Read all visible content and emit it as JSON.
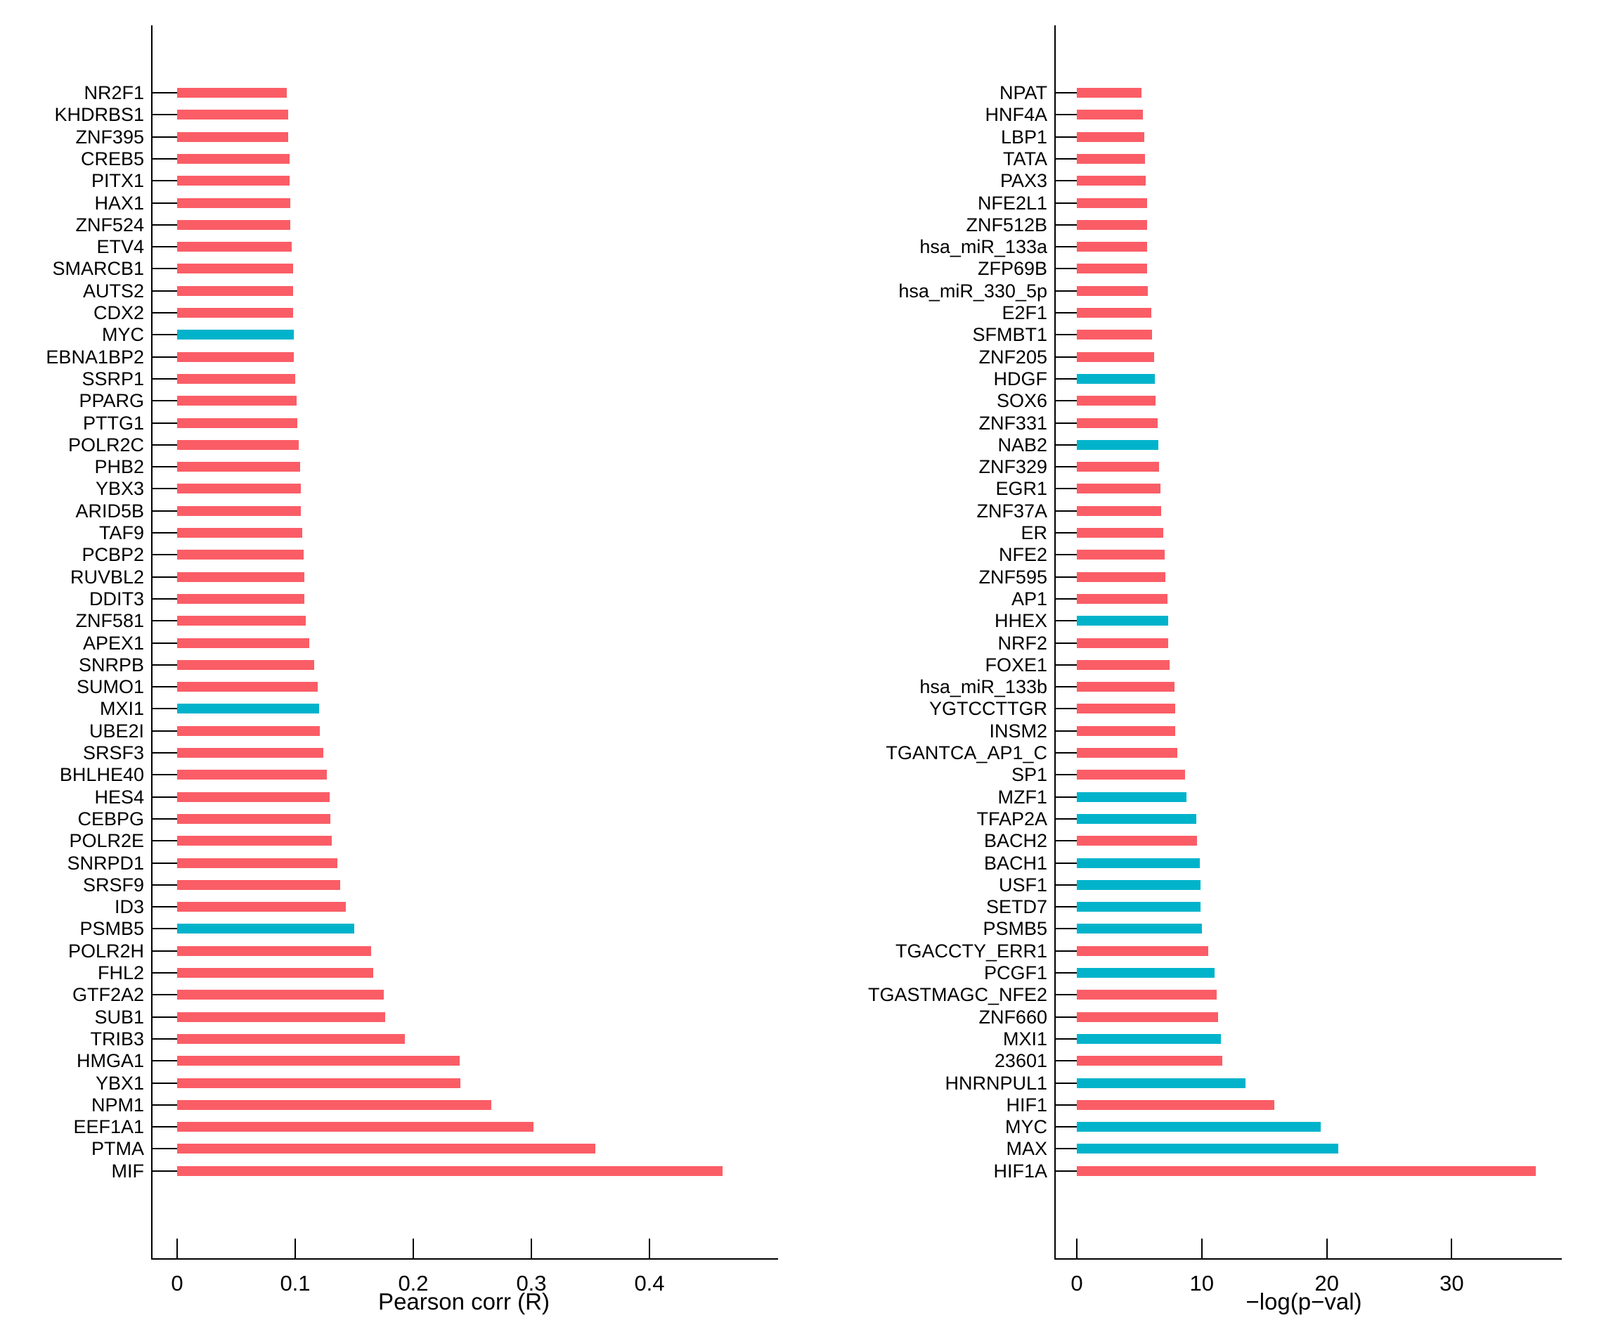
{
  "palette": {
    "red": "#FB5D66",
    "blue": "#00B3CB",
    "axis": "#000000",
    "background": "#ffffff"
  },
  "chart_data": [
    {
      "type": "bar",
      "orientation": "horizontal",
      "title": "",
      "xlabel": "Pearson corr (R)",
      "ylabel": "",
      "xlim": [
        0,
        0.508
      ],
      "grid": false,
      "xticks": [
        {
          "v": 0.0,
          "label": "0"
        },
        {
          "v": 0.1,
          "label": "0.1"
        },
        {
          "v": 0.2,
          "label": "0.2"
        },
        {
          "v": 0.3,
          "label": "0.3"
        },
        {
          "v": 0.4,
          "label": "0.4"
        }
      ],
      "rows": [
        {
          "label": "NR2F1",
          "value": 0.093,
          "color": "red"
        },
        {
          "label": "KHDRBS1",
          "value": 0.094,
          "color": "red"
        },
        {
          "label": "ZNF395",
          "value": 0.094,
          "color": "red"
        },
        {
          "label": "CREB5",
          "value": 0.095,
          "color": "red"
        },
        {
          "label": "PITX1",
          "value": 0.095,
          "color": "red"
        },
        {
          "label": "HAX1",
          "value": 0.096,
          "color": "red"
        },
        {
          "label": "ZNF524",
          "value": 0.096,
          "color": "red"
        },
        {
          "label": "ETV4",
          "value": 0.097,
          "color": "red"
        },
        {
          "label": "SMARCB1",
          "value": 0.098,
          "color": "red"
        },
        {
          "label": "AUTS2",
          "value": 0.098,
          "color": "red"
        },
        {
          "label": "CDX2",
          "value": 0.098,
          "color": "red"
        },
        {
          "label": "MYC",
          "value": 0.099,
          "color": "blue"
        },
        {
          "label": "EBNA1BP2",
          "value": 0.099,
          "color": "red"
        },
        {
          "label": "SSRP1",
          "value": 0.1,
          "color": "red"
        },
        {
          "label": "PPARG",
          "value": 0.101,
          "color": "red"
        },
        {
          "label": "PTTG1",
          "value": 0.102,
          "color": "red"
        },
        {
          "label": "POLR2C",
          "value": 0.103,
          "color": "red"
        },
        {
          "label": "PHB2",
          "value": 0.104,
          "color": "red"
        },
        {
          "label": "YBX3",
          "value": 0.105,
          "color": "red"
        },
        {
          "label": "ARID5B",
          "value": 0.105,
          "color": "red"
        },
        {
          "label": "TAF9",
          "value": 0.106,
          "color": "red"
        },
        {
          "label": "PCBP2",
          "value": 0.107,
          "color": "red"
        },
        {
          "label": "RUVBL2",
          "value": 0.108,
          "color": "red"
        },
        {
          "label": "DDIT3",
          "value": 0.108,
          "color": "red"
        },
        {
          "label": "ZNF581",
          "value": 0.109,
          "color": "red"
        },
        {
          "label": "APEX1",
          "value": 0.112,
          "color": "red"
        },
        {
          "label": "SNRPB",
          "value": 0.116,
          "color": "red"
        },
        {
          "label": "SUMO1",
          "value": 0.119,
          "color": "red"
        },
        {
          "label": "MXI1",
          "value": 0.12,
          "color": "blue"
        },
        {
          "label": "UBE2I",
          "value": 0.121,
          "color": "red"
        },
        {
          "label": "SRSF3",
          "value": 0.124,
          "color": "red"
        },
        {
          "label": "BHLHE40",
          "value": 0.127,
          "color": "red"
        },
        {
          "label": "HES4",
          "value": 0.129,
          "color": "red"
        },
        {
          "label": "CEBPG",
          "value": 0.13,
          "color": "red"
        },
        {
          "label": "POLR2E",
          "value": 0.131,
          "color": "red"
        },
        {
          "label": "SNRPD1",
          "value": 0.136,
          "color": "red"
        },
        {
          "label": "SRSF9",
          "value": 0.138,
          "color": "red"
        },
        {
          "label": "ID3",
          "value": 0.143,
          "color": "red"
        },
        {
          "label": "PSMB5",
          "value": 0.15,
          "color": "blue"
        },
        {
          "label": "POLR2H",
          "value": 0.164,
          "color": "red"
        },
        {
          "label": "FHL2",
          "value": 0.166,
          "color": "red"
        },
        {
          "label": "GTF2A2",
          "value": 0.175,
          "color": "red"
        },
        {
          "label": "SUB1",
          "value": 0.176,
          "color": "red"
        },
        {
          "label": "TRIB3",
          "value": 0.193,
          "color": "red"
        },
        {
          "label": "HMGA1",
          "value": 0.239,
          "color": "red"
        },
        {
          "label": "YBX1",
          "value": 0.24,
          "color": "red"
        },
        {
          "label": "NPM1",
          "value": 0.266,
          "color": "red"
        },
        {
          "label": "EEF1A1",
          "value": 0.302,
          "color": "red"
        },
        {
          "label": "PTMA",
          "value": 0.354,
          "color": "red"
        },
        {
          "label": "MIF",
          "value": 0.462,
          "color": "red"
        }
      ]
    },
    {
      "type": "bar",
      "orientation": "horizontal",
      "title": "",
      "xlabel": "−log(p−val)",
      "ylabel": "",
      "xlim": [
        0,
        38.7
      ],
      "grid": false,
      "xticks": [
        {
          "v": 0,
          "label": "0"
        },
        {
          "v": 10,
          "label": "10"
        },
        {
          "v": 20,
          "label": "20"
        },
        {
          "v": 30,
          "label": "30"
        }
      ],
      "rows": [
        {
          "label": "NPAT",
          "value": 5.2,
          "color": "red"
        },
        {
          "label": "HNF4A",
          "value": 5.3,
          "color": "red"
        },
        {
          "label": "LBP1",
          "value": 5.4,
          "color": "red"
        },
        {
          "label": "TATA",
          "value": 5.45,
          "color": "red"
        },
        {
          "label": "PAX3",
          "value": 5.5,
          "color": "red"
        },
        {
          "label": "NFE2L1",
          "value": 5.6,
          "color": "red"
        },
        {
          "label": "ZNF512B",
          "value": 5.6,
          "color": "red"
        },
        {
          "label": "hsa_miR_133a",
          "value": 5.6,
          "color": "red"
        },
        {
          "label": "ZFP69B",
          "value": 5.65,
          "color": "red"
        },
        {
          "label": "hsa_miR_330_5p",
          "value": 5.7,
          "color": "red"
        },
        {
          "label": "E2F1",
          "value": 5.95,
          "color": "red"
        },
        {
          "label": "SFMBT1",
          "value": 6.0,
          "color": "red"
        },
        {
          "label": "ZNF205",
          "value": 6.2,
          "color": "red"
        },
        {
          "label": "HDGF",
          "value": 6.25,
          "color": "blue"
        },
        {
          "label": "SOX6",
          "value": 6.3,
          "color": "red"
        },
        {
          "label": "ZNF331",
          "value": 6.45,
          "color": "red"
        },
        {
          "label": "NAB2",
          "value": 6.5,
          "color": "blue"
        },
        {
          "label": "ZNF329",
          "value": 6.6,
          "color": "red"
        },
        {
          "label": "EGR1",
          "value": 6.7,
          "color": "red"
        },
        {
          "label": "ZNF37A",
          "value": 6.75,
          "color": "red"
        },
        {
          "label": "ER",
          "value": 6.9,
          "color": "red"
        },
        {
          "label": "NFE2",
          "value": 7.05,
          "color": "red"
        },
        {
          "label": "ZNF595",
          "value": 7.1,
          "color": "red"
        },
        {
          "label": "AP1",
          "value": 7.25,
          "color": "red"
        },
        {
          "label": "HHEX",
          "value": 7.3,
          "color": "blue"
        },
        {
          "label": "NRF2",
          "value": 7.3,
          "color": "red"
        },
        {
          "label": "FOXE1",
          "value": 7.45,
          "color": "red"
        },
        {
          "label": "hsa_miR_133b",
          "value": 7.8,
          "color": "red"
        },
        {
          "label": "YGTCCTTGR",
          "value": 7.85,
          "color": "red"
        },
        {
          "label": "INSM2",
          "value": 7.9,
          "color": "red"
        },
        {
          "label": "TGANTCA_AP1_C",
          "value": 8.05,
          "color": "red"
        },
        {
          "label": "SP1",
          "value": 8.65,
          "color": "red"
        },
        {
          "label": "MZF1",
          "value": 8.8,
          "color": "blue"
        },
        {
          "label": "TFAP2A",
          "value": 9.55,
          "color": "blue"
        },
        {
          "label": "BACH2",
          "value": 9.6,
          "color": "red"
        },
        {
          "label": "BACH1",
          "value": 9.85,
          "color": "blue"
        },
        {
          "label": "USF1",
          "value": 9.9,
          "color": "blue"
        },
        {
          "label": "SETD7",
          "value": 9.9,
          "color": "blue"
        },
        {
          "label": "PSMB5",
          "value": 10.0,
          "color": "blue"
        },
        {
          "label": "TGACCTY_ERR1",
          "value": 10.5,
          "color": "red"
        },
        {
          "label": "PCGF1",
          "value": 11.0,
          "color": "blue"
        },
        {
          "label": "TGASTMAGC_NFE2",
          "value": 11.2,
          "color": "red"
        },
        {
          "label": "ZNF660",
          "value": 11.3,
          "color": "red"
        },
        {
          "label": "MXI1",
          "value": 11.55,
          "color": "blue"
        },
        {
          "label": "23601",
          "value": 11.65,
          "color": "red"
        },
        {
          "label": "HNRNPUL1",
          "value": 13.5,
          "color": "blue"
        },
        {
          "label": "HIF1",
          "value": 15.8,
          "color": "red"
        },
        {
          "label": "MYC",
          "value": 19.5,
          "color": "blue"
        },
        {
          "label": "MAX",
          "value": 20.9,
          "color": "blue"
        },
        {
          "label": "HIF1A",
          "value": 36.7,
          "color": "red"
        }
      ]
    }
  ]
}
